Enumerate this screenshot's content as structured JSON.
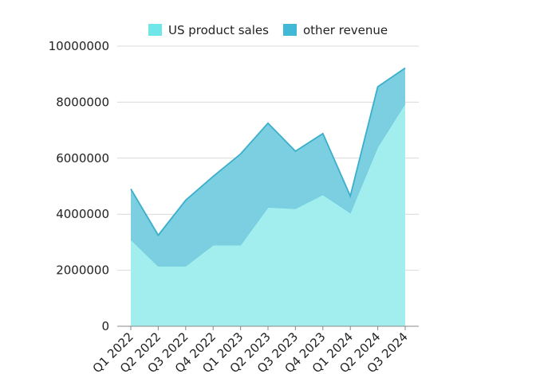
{
  "chart_data": {
    "type": "area",
    "stacked": true,
    "categories": [
      "Q1 2022",
      "Q2 2022",
      "Q3 2022",
      "Q4 2022",
      "Q1 2023",
      "Q2 2023",
      "Q3 2023",
      "Q4 2023",
      "Q1 2024",
      "Q2 2024",
      "Q3 2024"
    ],
    "series": [
      {
        "name": "US product sales",
        "color": "#a2eeee",
        "swatch": "#6fe6e8",
        "values": [
          3100000,
          2150000,
          2150000,
          2900000,
          2900000,
          4250000,
          4200000,
          4700000,
          4050000,
          6400000,
          7950000
        ]
      },
      {
        "name": "other revenue",
        "color": "#7ccfe0",
        "swatch": "#41b8d6",
        "values": [
          1800000,
          1100000,
          2350000,
          2450000,
          3250000,
          3000000,
          2050000,
          2180000,
          600000,
          2150000,
          1270000
        ]
      }
    ],
    "ylim": [
      0,
      10000000
    ],
    "yticks": [
      "0",
      "2000000",
      "4000000",
      "6000000",
      "8000000",
      "10000000"
    ],
    "ytick_values": [
      0,
      2000000,
      4000000,
      6000000,
      8000000,
      10000000
    ],
    "grid": true,
    "legend": "top",
    "line_color": "#3aaecb",
    "title": "",
    "xlabel": "",
    "ylabel": ""
  }
}
